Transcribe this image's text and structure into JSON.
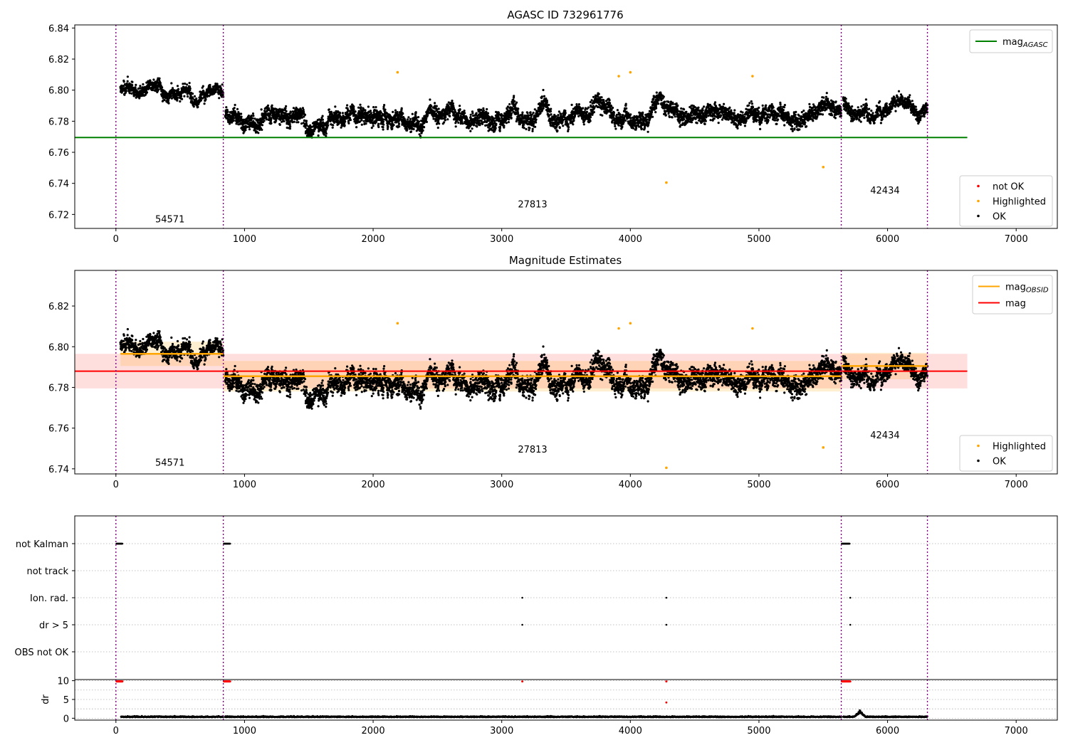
{
  "chart_data": [
    {
      "type": "scatter",
      "title": "AGASC ID 732961776",
      "xlim": [
        -320,
        7320
      ],
      "ylim": [
        6.711,
        6.842
      ],
      "xticks": [
        0,
        1000,
        2000,
        3000,
        4000,
        5000,
        6000,
        7000
      ],
      "yticks": [
        6.72,
        6.74,
        6.76,
        6.78,
        6.8,
        6.82,
        6.84
      ],
      "xlabel": "",
      "ylabel": "",
      "grid": false,
      "obs_boundaries": [
        0,
        835,
        5640,
        6310
      ],
      "obs_labels": [
        {
          "text": "54571",
          "x": 420,
          "y": 6.715
        },
        {
          "text": "27813",
          "x": 3240,
          "y": 6.7245
        },
        {
          "text": "42434",
          "x": 5980,
          "y": 6.7335
        }
      ],
      "reference_line": {
        "name": "mag_AGASC",
        "y": 6.7695,
        "x": [
          -320,
          6620
        ],
        "color": "#008000"
      },
      "segments": [
        {
          "x": [
            35,
            835
          ],
          "mean": 6.798,
          "spread": 0.0055
        },
        {
          "x": [
            850,
            5640
          ],
          "mean": 6.785,
          "spread": 0.0075
        },
        {
          "x": [
            5655,
            6310
          ],
          "mean": 6.79,
          "spread": 0.0065
        }
      ],
      "highlighted_points": [
        {
          "x": 2190,
          "y": 6.8115
        },
        {
          "x": 3910,
          "y": 6.809
        },
        {
          "x": 4000,
          "y": 6.8115
        },
        {
          "x": 4280,
          "y": 6.7405
        },
        {
          "x": 4950,
          "y": 6.809
        },
        {
          "x": 5500,
          "y": 6.7505
        }
      ],
      "legend_upper": {
        "position": "top-right",
        "entries": [
          {
            "label": "mag",
            "sub": "AGASC",
            "color": "#008000",
            "kind": "line"
          }
        ]
      },
      "legend_lower": {
        "position": "bottom-right",
        "entries": [
          {
            "label": "not OK",
            "color": "#ff0000",
            "kind": "marker"
          },
          {
            "label": "Highlighted",
            "color": "#ffa500",
            "kind": "marker"
          },
          {
            "label": "OK",
            "color": "#000000",
            "kind": "marker"
          }
        ]
      }
    },
    {
      "type": "scatter",
      "title": "Magnitude Estimates",
      "xlim": [
        -320,
        7320
      ],
      "ylim": [
        6.7375,
        6.8375
      ],
      "xticks": [
        0,
        1000,
        2000,
        3000,
        4000,
        5000,
        6000,
        7000
      ],
      "yticks": [
        6.74,
        6.76,
        6.78,
        6.8,
        6.82
      ],
      "xlabel": "",
      "ylabel": "",
      "grid": false,
      "obs_boundaries": [
        0,
        835,
        5640,
        6310
      ],
      "obs_labels": [
        {
          "text": "54571",
          "x": 420,
          "y": 6.7415
        },
        {
          "text": "27813",
          "x": 3240,
          "y": 6.748
        },
        {
          "text": "42434",
          "x": 5980,
          "y": 6.755
        }
      ],
      "mag_line": {
        "name": "mag",
        "y": 6.788,
        "band": [
          6.7795,
          6.7965
        ],
        "x": [
          -320,
          6620
        ],
        "color": "#ff0000"
      },
      "obsid_mags": [
        {
          "x": [
            35,
            835
          ],
          "y": 6.7965,
          "band": [
            6.7905,
            6.8025
          ]
        },
        {
          "x": [
            835,
            5640
          ],
          "y": 6.7855,
          "band": [
            6.778,
            6.793
          ]
        },
        {
          "x": [
            5640,
            6310
          ],
          "y": 6.7905,
          "band": [
            6.784,
            6.797
          ]
        }
      ],
      "segments": [
        {
          "x": [
            35,
            835
          ],
          "mean": 6.798,
          "spread": 0.0055
        },
        {
          "x": [
            850,
            5640
          ],
          "mean": 6.785,
          "spread": 0.0075
        },
        {
          "x": [
            5655,
            6310
          ],
          "mean": 6.79,
          "spread": 0.0065
        }
      ],
      "highlighted_points": [
        {
          "x": 2190,
          "y": 6.8115
        },
        {
          "x": 3910,
          "y": 6.809
        },
        {
          "x": 4000,
          "y": 6.8115
        },
        {
          "x": 4280,
          "y": 6.7405
        },
        {
          "x": 4950,
          "y": 6.809
        },
        {
          "x": 5500,
          "y": 6.7505
        }
      ],
      "legend_upper": {
        "position": "top-right",
        "entries": [
          {
            "label": "mag",
            "sub": "OBSID",
            "color": "#ffa500",
            "kind": "line"
          },
          {
            "label": "mag",
            "sub": "",
            "color": "#ff0000",
            "kind": "line"
          }
        ]
      },
      "legend_lower": {
        "position": "bottom-right",
        "entries": [
          {
            "label": "Highlighted",
            "color": "#ffa500",
            "kind": "marker"
          },
          {
            "label": "OK",
            "color": "#000000",
            "kind": "marker"
          }
        ]
      }
    },
    {
      "type": "scatter",
      "title": "",
      "xlim": [
        -320,
        7320
      ],
      "categories": [
        "not Kalman",
        "not track",
        "Ion. rad.",
        "dr > 5",
        "OBS not OK"
      ],
      "obs_boundaries": [
        0,
        835,
        5640,
        6310
      ],
      "flags": {
        "not Kalman": [
          [
            5,
            50
          ],
          [
            840,
            890
          ],
          [
            5645,
            5705
          ]
        ],
        "not track": [],
        "Ion. rad.": [
          [
            3160,
            3160
          ],
          [
            4280,
            4280
          ],
          [
            5710,
            5710
          ]
        ],
        "dr > 5": [
          [
            3160,
            3160
          ],
          [
            4280,
            4280
          ],
          [
            5710,
            5710
          ]
        ],
        "OBS not OK": []
      }
    },
    {
      "type": "scatter",
      "title": "",
      "xlim": [
        -320,
        7320
      ],
      "ylim": [
        -0.5,
        10.3
      ],
      "xticks": [
        0,
        1000,
        2000,
        3000,
        4000,
        5000,
        6000,
        7000
      ],
      "yticks": [
        0,
        5,
        10
      ],
      "ylabel": "dr",
      "obs_boundaries": [
        0,
        835,
        5640,
        6310
      ],
      "typical_dr": 0.3,
      "clipped_value": 10,
      "clipped_points": [
        [
          5,
          50
        ],
        [
          840,
          890
        ],
        [
          3160,
          3160
        ],
        [
          4280,
          4280
        ],
        [
          5645,
          5705
        ],
        [
          5710,
          5710
        ]
      ],
      "extra_points": [
        {
          "x": 4280,
          "y": 4.2
        }
      ],
      "bump": {
        "x": [
          5740,
          5830
        ],
        "peak": 1.6
      }
    }
  ]
}
